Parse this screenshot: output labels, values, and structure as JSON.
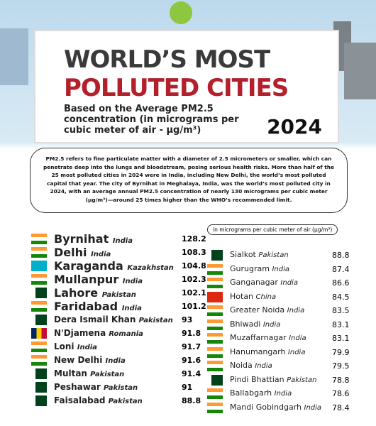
{
  "header": {
    "title_line1": "WORLD’S MOST",
    "title_line2": "POLLUTED CITIES",
    "subtitle": "Based on the Average PM2.5 concentration (in micrograms per cubic meter of air - µg/m³)",
    "year": "2024"
  },
  "intro": [
    "PM2.5 refers to fine particulate matter with a diameter of 2.5 micrometers or smaller, which can penetrate deep into the lungs and bloodstream, posing serious health risks. More than half of the 25 most polluted cities in 2024 were in India, including ",
    "New Delhi",
    ", the world’s most polluted capital that year. The city of ",
    "Byrnihat",
    " in Meghalaya, India, was the world’s most polluted city in 2024, with an average annual PM2.5 concentration of nearly 130 micrograms per cubic meter (µg/m³)—around 25 times higher than the WHO’s recommended limit."
  ],
  "unit_note": "in micrograms per cubic meter of air (µg/m³)",
  "left": [
    [
      "Byrnihat",
      "India",
      128.2
    ],
    [
      "Delhi",
      "India",
      108.3
    ],
    [
      "Karaganda",
      "Kazakhstan",
      104.8
    ],
    [
      "Mullanpur",
      "India",
      102.3
    ],
    [
      "Lahore",
      "Pakistan",
      102.1
    ],
    [
      "Faridabad",
      "India",
      101.2
    ],
    [
      "Dera Ismail Khan",
      "Pakistan",
      93
    ],
    [
      "N'Djamena",
      "Romania",
      91.8
    ],
    [
      "Loni",
      "India",
      91.7
    ],
    [
      "New Delhi",
      "India",
      91.6
    ],
    [
      "Multan",
      "Pakistan",
      91.4
    ],
    [
      "Peshawar",
      "Pakistan",
      91
    ],
    [
      "Faisalabad",
      "Pakistan",
      88.8
    ]
  ],
  "right": [
    [
      "Sialkot",
      "Pakistan",
      88.8
    ],
    [
      "Gurugram",
      "India",
      87.4
    ],
    [
      "Ganganagar",
      "India",
      86.6
    ],
    [
      "Hotan",
      "China",
      84.5
    ],
    [
      "Greater Noida",
      "India",
      83.5
    ],
    [
      "Bhiwadi",
      "India",
      83.1
    ],
    [
      "Muzaffarnagar",
      "India",
      83.1
    ],
    [
      "Hanumangarh",
      "India",
      79.9
    ],
    [
      "Noida",
      "India",
      79.5
    ],
    [
      "Pindi Bhattian",
      "Pakistan",
      78.8
    ],
    [
      "Ballabgarh",
      "India",
      78.6
    ],
    [
      "Mandi Gobindgarh",
      "India",
      78.4
    ]
  ]
}
